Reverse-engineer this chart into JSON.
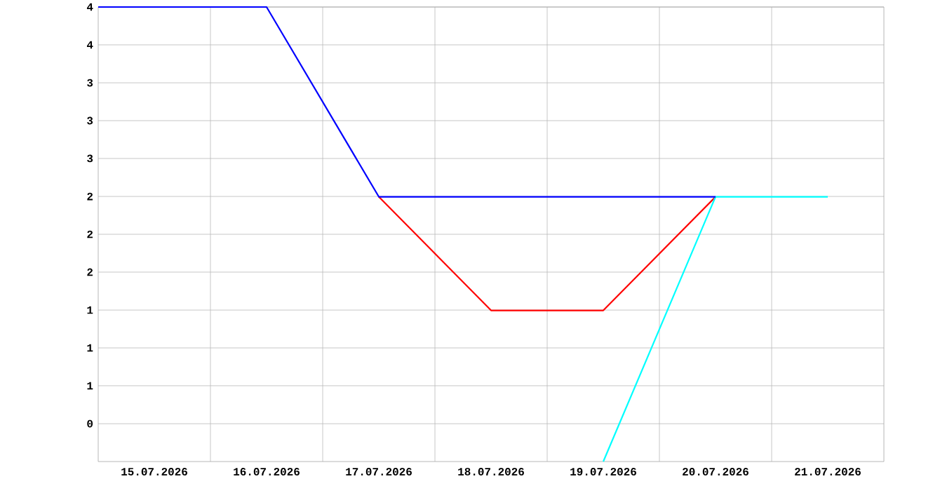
{
  "chart_data": {
    "type": "line",
    "x": [
      "2026-07-14T12:00",
      "2026-07-16",
      "2026-07-17",
      "2026-07-18",
      "2026-07-19",
      "2026-07-20"
    ],
    "series": [
      {
        "color": "#ff0000",
        "x": [
          "2026-07-17",
          "2026-07-18",
          "2026-07-19",
          "2026-07-20"
        ],
        "values": [
          2.33,
          1.33,
          1.33,
          2.33
        ]
      },
      {
        "color": "#00ffff",
        "x": [
          "2026-07-19",
          "2026-07-20",
          "2026-07-21"
        ],
        "values": [
          0,
          2.33,
          2.33
        ]
      },
      {
        "color": "#0000ff",
        "values": [
          4,
          4,
          2.33,
          2.33,
          2.33,
          2.33
        ]
      }
    ],
    "xlim": [
      "2026-07-14T12:00",
      "2026-07-21T12:00"
    ],
    "xticks": [
      {
        "value": "2026-07-15",
        "label": "15.07.2026"
      },
      {
        "value": "2026-07-15T12:00",
        "label": null
      },
      {
        "value": "2026-07-16",
        "label": "16.07.2026"
      },
      {
        "value": "2026-07-16T12:00",
        "label": null
      },
      {
        "value": "2026-07-17",
        "label": "17.07.2026"
      },
      {
        "value": "2026-07-17T12:00",
        "label": null
      },
      {
        "value": "2026-07-18",
        "label": "18.07.2026"
      },
      {
        "value": "2026-07-18T12:00",
        "label": null
      },
      {
        "value": "2026-07-19",
        "label": "19.07.2026"
      },
      {
        "value": "2026-07-19T12:00",
        "label": null
      },
      {
        "value": "2026-07-20",
        "label": "20.07.2026"
      },
      {
        "value": "2026-07-20T12:00",
        "label": null
      },
      {
        "value": "2026-07-21",
        "label": "21.07.2026"
      }
    ],
    "ylim": [
      0,
      4
    ],
    "yticks": [
      {
        "value": 0.333,
        "label": "0"
      },
      {
        "value": 0.667,
        "label": "1"
      },
      {
        "value": 1,
        "label": "1"
      },
      {
        "value": 1.333,
        "label": "1"
      },
      {
        "value": 1.667,
        "label": "2"
      },
      {
        "value": 2,
        "label": "2"
      },
      {
        "value": 2.333,
        "label": "2"
      },
      {
        "value": 2.667,
        "label": "3"
      },
      {
        "value": 3,
        "label": "3"
      },
      {
        "value": 3.333,
        "label": "3"
      },
      {
        "value": 3.667,
        "label": "4"
      },
      {
        "value": 4,
        "label": "4"
      }
    ],
    "grid": true,
    "marker": "none",
    "line_style": "solid"
  }
}
